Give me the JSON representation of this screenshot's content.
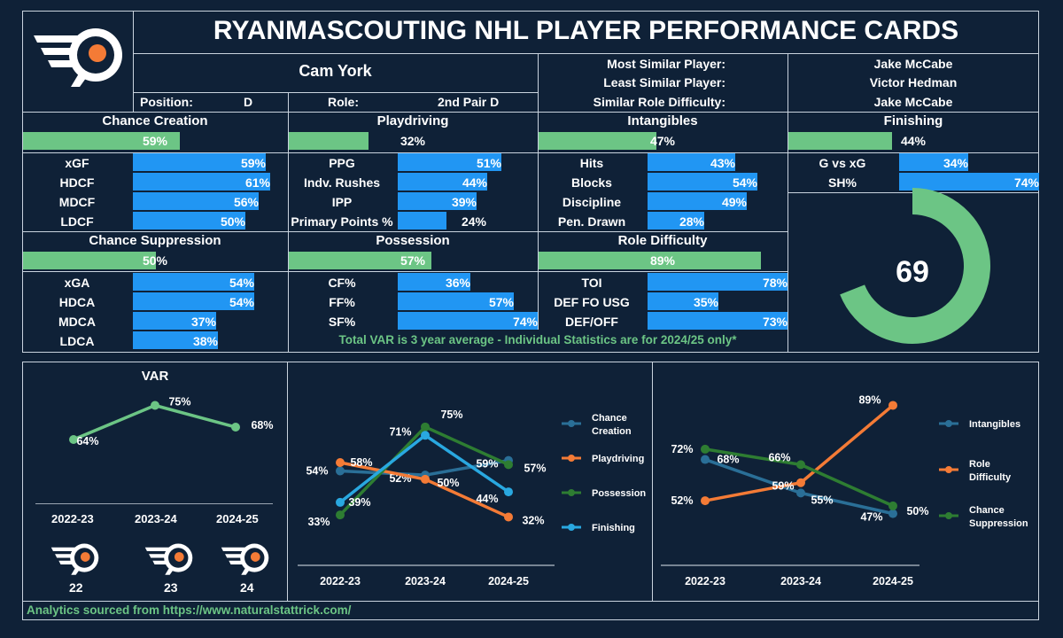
{
  "title": "RYANMASCOUTING NHL PLAYER PERFORMANCE CARDS",
  "player": {
    "name": "Cam York",
    "position_label": "Position:",
    "position": "D",
    "role_label": "Role:",
    "role": "2nd Pair D"
  },
  "similarity": {
    "most_label": "Most Similar Player:",
    "most": "Jake McCabe",
    "least_label": "Least Similar Player:",
    "least": "Victor Hedman",
    "role_label": "Similar Role Difficulty:",
    "role": "Jake McCabe"
  },
  "colors": {
    "background": "#0f2137",
    "blue_bar": "#2196f3",
    "green_bar": "#6cc585",
    "orange": "#f47b36",
    "dark_green": "#2e7d32",
    "steel_blue": "#2a6f97",
    "light_blue": "#29a8e0"
  },
  "sections": {
    "chance_creation": {
      "title": "Chance Creation",
      "value_label": "59%",
      "value": 59,
      "rows": [
        {
          "label": "xGF",
          "pct": "59%",
          "v": 59
        },
        {
          "label": "HDCF",
          "pct": "61%",
          "v": 61
        },
        {
          "label": "MDCF",
          "pct": "56%",
          "v": 56
        },
        {
          "label": "LDCF",
          "pct": "50%",
          "v": 50
        }
      ]
    },
    "playdriving": {
      "title": "Playdriving",
      "value_label": "32%",
      "value": 32,
      "rows": [
        {
          "label": "PPG",
          "pct": "51%",
          "v": 51
        },
        {
          "label": "Indv. Rushes",
          "pct": "44%",
          "v": 44
        },
        {
          "label": "IPP",
          "pct": "39%",
          "v": 39
        },
        {
          "label": "Primary Points %",
          "pct": "24%",
          "v": 24
        }
      ]
    },
    "intangibles": {
      "title": "Intangibles",
      "value_label": "47%",
      "value": 47,
      "rows": [
        {
          "label": "Hits",
          "pct": "43%",
          "v": 43
        },
        {
          "label": "Blocks",
          "pct": "54%",
          "v": 54
        },
        {
          "label": "Discipline",
          "pct": "49%",
          "v": 49
        },
        {
          "label": "Pen. Drawn",
          "pct": "28%",
          "v": 28
        }
      ]
    },
    "finishing": {
      "title": "Finishing",
      "value_label": "44%",
      "value": 44,
      "rows": [
        {
          "label": "G vs xG",
          "pct": "34%",
          "v": 34
        },
        {
          "label": "SH%",
          "pct": "74%",
          "v": 74
        }
      ]
    },
    "chance_suppression": {
      "title": "Chance Suppression",
      "value_label": "50%",
      "value": 50,
      "rows": [
        {
          "label": "xGA",
          "pct": "54%",
          "v": 54
        },
        {
          "label": "HDCA",
          "pct": "54%",
          "v": 54
        },
        {
          "label": "MDCA",
          "pct": "37%",
          "v": 37
        },
        {
          "label": "LDCA",
          "pct": "38%",
          "v": 38
        }
      ]
    },
    "possession": {
      "title": "Possession",
      "value_label": "57%",
      "value": 57,
      "rows": [
        {
          "label": "CF%",
          "pct": "36%",
          "v": 36
        },
        {
          "label": "FF%",
          "pct": "57%",
          "v": 57
        },
        {
          "label": "SF%",
          "pct": "74%",
          "v": 74
        }
      ]
    },
    "role_difficulty": {
      "title": "Role Difficulty",
      "value_label": "89%",
      "value": 89,
      "rows": [
        {
          "label": "TOI",
          "pct": "78%",
          "v": 78
        },
        {
          "label": "DEF FO USG",
          "pct": "35%",
          "v": 35
        },
        {
          "label": "DEF/OFF",
          "pct": "73%",
          "v": 73
        }
      ]
    }
  },
  "gauge": {
    "value": 69,
    "label": "69"
  },
  "note": "Total VAR is 3 year average - Individual Statistics are for 2024/25 only*",
  "footer": "Analytics sourced from https://www.naturalstattrick.com/",
  "var_panel": {
    "title": "VAR",
    "seasons": [
      "2022-23",
      "2023-24",
      "2024-25"
    ],
    "logo_numbers": [
      "22",
      "23",
      "24"
    ]
  },
  "chart_data": [
    {
      "type": "line",
      "title": "VAR",
      "categories": [
        "2022-23",
        "2023-24",
        "2024-25"
      ],
      "series": [
        {
          "values": [
            64,
            75,
            68
          ],
          "labels": [
            "64%",
            "75%",
            "68%"
          ]
        }
      ]
    },
    {
      "type": "line",
      "categories": [
        "2022-23",
        "2023-24",
        "2024-25"
      ],
      "series": [
        {
          "name": "Chance Creation",
          "values": [
            54,
            52,
            59
          ],
          "labels": [
            "54%",
            "52%",
            "59%"
          ]
        },
        {
          "name": "Playdriving",
          "values": [
            58,
            50,
            32
          ],
          "labels": [
            "58%",
            "50%",
            "32%"
          ]
        },
        {
          "name": "Possession",
          "values": [
            33,
            75,
            57
          ],
          "labels": [
            "33%",
            "75%",
            "57%"
          ]
        },
        {
          "name": "Finishing",
          "values": [
            39,
            71,
            44
          ],
          "labels": [
            "39%",
            "71%",
            "44%"
          ]
        }
      ]
    },
    {
      "type": "line",
      "categories": [
        "2022-23",
        "2023-24",
        "2024-25"
      ],
      "series": [
        {
          "name": "Intangibles",
          "values": [
            68,
            55,
            47
          ],
          "labels": [
            "68%",
            "55%",
            "47%"
          ]
        },
        {
          "name": "Role Difficulty",
          "values": [
            52,
            59,
            89
          ],
          "labels": [
            "52%",
            "59%",
            "89%"
          ]
        },
        {
          "name": "Chance Suppression",
          "values": [
            72,
            66,
            50
          ],
          "labels": [
            "72%",
            "66%",
            "50%"
          ]
        }
      ]
    }
  ]
}
